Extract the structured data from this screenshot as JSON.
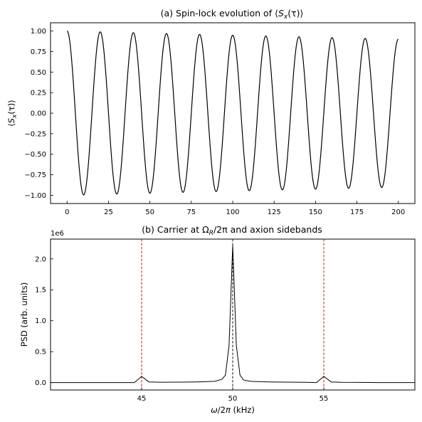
{
  "chart_data": [
    {
      "type": "line",
      "title": "(a) Spin-lock evolution of ⟨Sx(τ)⟩",
      "title_parts": {
        "pre": "(a) Spin-lock evolution of ⟨",
        "S": "S",
        "sub": "x",
        "tau": "(τ)⟩"
      },
      "xlabel": "",
      "ylabel": "⟨Sx(τ)⟩",
      "ylabel_parts": {
        "pre": "⟨",
        "S": "S",
        "sub": "x",
        "post": "(τ)⟩"
      },
      "xlim": [
        -10,
        210
      ],
      "ylim": [
        -1.1,
        1.1
      ],
      "xticks": [
        0,
        25,
        50,
        75,
        100,
        125,
        150,
        175,
        200
      ],
      "xtick_labels": [
        "0",
        "25",
        "50",
        "75",
        "100",
        "125",
        "150",
        "175",
        "200"
      ],
      "yticks": [
        1.0,
        0.75,
        0.5,
        0.25,
        0.0,
        -0.25,
        -0.5,
        -0.75,
        -1.0
      ],
      "ytick_labels": [
        "1.00",
        "0.75",
        "0.50",
        "0.25",
        "0.00",
        "−0.25",
        "−0.50",
        "−0.75",
        "−1.00"
      ],
      "grid": false,
      "series": [
        {
          "model": "cos(2π·τ/period)·exp(−τ/decay)",
          "period": 20.0,
          "decay": 1900,
          "tau_range": [
            0,
            200
          ],
          "color": "#000000"
        }
      ]
    },
    {
      "type": "line",
      "title": "(b) Carrier at ΩR/2π and axion sidebands",
      "title_parts": {
        "pre": "(b) Carrier at Ω",
        "sub": "R",
        "post": "/2π and axion sidebands"
      },
      "xlabel": "ω/2π (kHz)",
      "xlabel_parts": {
        "omega": "ω",
        "post": "/2",
        "pi": "π",
        "unit": " (kHz)"
      },
      "ylabel": "PSD (arb. units)",
      "offset_text": "1e6",
      "xlim": [
        40,
        60
      ],
      "ylim": [
        -0.12,
        2.32
      ],
      "xticks": [
        45,
        50,
        55
      ],
      "xtick_labels": [
        "45",
        "50",
        "55"
      ],
      "yticks": [
        0.0,
        0.5,
        1.0,
        1.5,
        2.0
      ],
      "ytick_labels": [
        "0.0",
        "0.5",
        "1.0",
        "1.5",
        "2.0"
      ],
      "grid": false,
      "x": [
        40.0,
        44.6,
        45.0,
        45.4,
        46.0,
        47.0,
        48.0,
        49.0,
        49.4,
        49.6,
        49.8,
        50.0,
        50.2,
        50.4,
        50.6,
        51.0,
        52.0,
        53.0,
        54.0,
        54.6,
        55.0,
        55.4,
        56.0,
        57.0,
        58.0,
        60.0
      ],
      "series": [
        {
          "values": [
            0.0,
            0.0,
            0.1,
            0.01,
            0.005,
            0.006,
            0.01,
            0.02,
            0.05,
            0.12,
            0.6,
            2.22,
            0.6,
            0.12,
            0.04,
            0.02,
            0.01,
            0.006,
            0.004,
            0.0,
            0.1,
            0.01,
            0.004,
            0.002,
            0.0,
            0.0
          ],
          "color": "#000000"
        }
      ],
      "markers": [
        {
          "x": 45,
          "color": "#cc0000"
        },
        {
          "x": 50,
          "color": "#000000"
        },
        {
          "x": 55,
          "color": "#cc0000"
        }
      ]
    }
  ]
}
